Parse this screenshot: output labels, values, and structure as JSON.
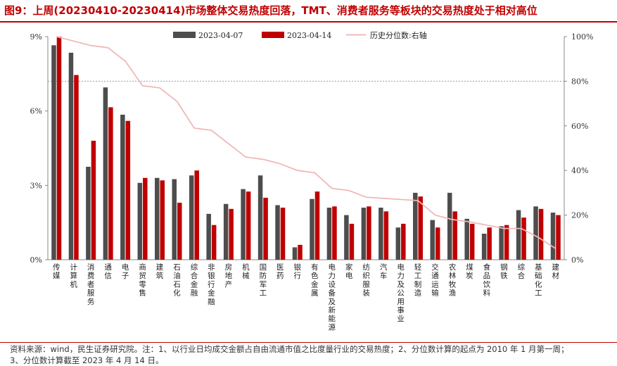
{
  "title": "图9：上周(20230410-20230414)市场整体交易热度回落，TMT、消费者服务等板块的交易热度处于相对高位",
  "footer": "资料来源：wind，民生证券研究院。注：1、以行业日均成交金额占自由流通市值之比度量行业的交易热度；2、分位数计算的起点为 2010 年 1 月第一周；",
  "footer_line2": "3、分位数计算截至 2023 年 4 月 14 日。",
  "colors": {
    "series1": "#4d4d4d",
    "series2": "#c00000",
    "line": "#f0b8b8",
    "axis": "#888888"
  },
  "chart_data": {
    "type": "bar",
    "categories": [
      "传媒",
      "计算机",
      "消费者服务",
      "通信",
      "电子",
      "商贸零售",
      "建筑",
      "石油石化",
      "综合金融",
      "非银行金融",
      "房地产",
      "机械",
      "国防军工",
      "医药",
      "银行",
      "有色金属",
      "电力设备及新能源",
      "家电",
      "纺织服装",
      "汽车",
      "电力及公用事业",
      "轻工制造",
      "交通运输",
      "农林牧渔",
      "煤炭",
      "食品饮料",
      "钢铁",
      "综合",
      "基础化工",
      "建材"
    ],
    "series": [
      {
        "name": "2023-04-07",
        "axis": "left",
        "values": [
          8.65,
          8.35,
          3.75,
          6.95,
          5.85,
          3.1,
          3.3,
          3.25,
          3.4,
          1.85,
          2.25,
          2.85,
          3.4,
          2.2,
          0.5,
          2.45,
          2.1,
          1.8,
          2.1,
          2.1,
          1.3,
          2.7,
          1.6,
          2.7,
          1.65,
          1.05,
          1.35,
          2.0,
          2.15,
          1.9
        ]
      },
      {
        "name": "2023-04-14",
        "axis": "left",
        "values": [
          9.0,
          7.45,
          4.8,
          6.15,
          5.6,
          3.3,
          3.2,
          2.3,
          3.6,
          1.4,
          2.05,
          2.75,
          2.5,
          2.1,
          0.6,
          2.75,
          2.15,
          1.45,
          2.15,
          1.95,
          1.45,
          2.55,
          1.3,
          1.95,
          1.45,
          1.3,
          1.4,
          1.7,
          2.05,
          1.8
        ]
      },
      {
        "name": "历史分位数:右轴",
        "axis": "right",
        "type": "line",
        "values": [
          100,
          98,
          96,
          95,
          89,
          78,
          77,
          71,
          59,
          58,
          52,
          46,
          45,
          43,
          40,
          39,
          32,
          31,
          28,
          27.5,
          27,
          26.5,
          20,
          18,
          17,
          15.5,
          14,
          14,
          10,
          5
        ]
      }
    ],
    "y_left": {
      "min": 0,
      "max": 9,
      "ticks": [
        "0%",
        "3%",
        "6%",
        "9%"
      ],
      "tick_values": [
        0,
        3,
        6,
        9
      ]
    },
    "y_right": {
      "min": 0,
      "max": 100,
      "ticks": [
        "0%",
        "20%",
        "40%",
        "60%",
        "80%",
        "100%"
      ],
      "tick_values": [
        0,
        20,
        40,
        60,
        80,
        100
      ]
    },
    "reference_line": {
      "axis": "right",
      "value": 80,
      "style": "dotted"
    },
    "legend_position": "top"
  }
}
